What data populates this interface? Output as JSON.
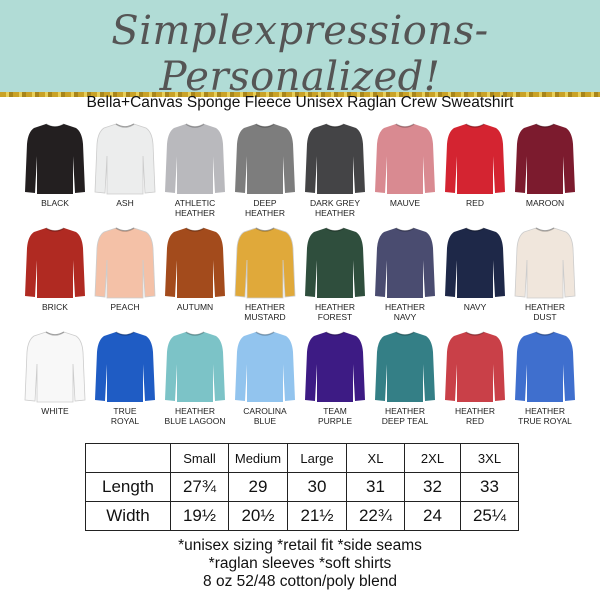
{
  "header": {
    "brand": "Simplexpressions- Personalized!",
    "subtitle": "Bella+Canvas Sponge Fleece Unisex Raglan Crew Sweatshirt",
    "bg_color": "#b1dcd6"
  },
  "swatches": [
    {
      "label": "BLACK",
      "color": "#231f20"
    },
    {
      "label": "ASH",
      "color": "#eceded"
    },
    {
      "label": "ATHLETIC\nHEATHER",
      "color": "#b9b9bd"
    },
    {
      "label": "DEEP\nHEATHER",
      "color": "#7d7d7d"
    },
    {
      "label": "DARK GREY\nHEATHER",
      "color": "#444446"
    },
    {
      "label": "MAUVE",
      "color": "#d98a91"
    },
    {
      "label": "RED",
      "color": "#d42431"
    },
    {
      "label": "MAROON",
      "color": "#7c1b2e"
    },
    {
      "label": "BRICK",
      "color": "#b02a22"
    },
    {
      "label": "PEACH",
      "color": "#f4c1a7"
    },
    {
      "label": "AUTUMN",
      "color": "#a34b1c"
    },
    {
      "label": "HEATHER\nMUSTARD",
      "color": "#e0a93a"
    },
    {
      "label": "HEATHER\nFOREST",
      "color": "#2f4e3d"
    },
    {
      "label": "HEATHER\nNAVY",
      "color": "#4a4c70"
    },
    {
      "label": "NAVY",
      "color": "#1e2848"
    },
    {
      "label": "HEATHER\nDUST",
      "color": "#f0e6dc"
    },
    {
      "label": "WHITE",
      "color": "#f8f8f8"
    },
    {
      "label": "TRUE\nROYAL",
      "color": "#1f5cc4"
    },
    {
      "label": "HEATHER\nBLUE LAGOON",
      "color": "#7cc3c7"
    },
    {
      "label": "CAROLINA\nBLUE",
      "color": "#92c4ee"
    },
    {
      "label": "TEAM\nPURPLE",
      "color": "#3d1b84"
    },
    {
      "label": "HEATHER\nDEEP TEAL",
      "color": "#347f86"
    },
    {
      "label": "HEATHER\nRED",
      "color": "#c94048"
    },
    {
      "label": "HEATHER\nTRUE ROYAL",
      "color": "#3f6fce"
    }
  ],
  "size_table": {
    "headers": [
      "",
      "Small",
      "Medium",
      "Large",
      "XL",
      "2XL",
      "3XL"
    ],
    "rows": [
      {
        "label": "Length",
        "values": [
          "27¾",
          "29",
          "30",
          "31",
          "32",
          "33"
        ]
      },
      {
        "label": "Width",
        "values": [
          "19½",
          "20½",
          "21½",
          "22¾",
          "24",
          "25¼"
        ]
      }
    ]
  },
  "notes": [
    "*unisex sizing *retail fit *side seams",
    "*raglan sleeves *soft shirts",
    "8 oz 52/48 cotton/poly blend"
  ]
}
